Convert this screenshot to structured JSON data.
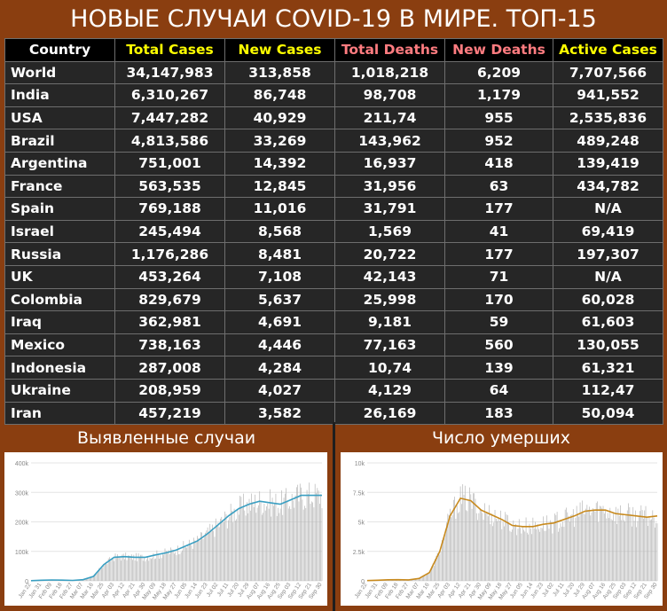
{
  "title": "НОВЫЕ СЛУЧАИ COVID-19 В МИРЕ. ТОП-15",
  "table": {
    "headers": [
      "Country",
      "Total Cases",
      "New Cases",
      "Total Deaths",
      "New Deaths",
      "Active Cases"
    ],
    "header_colors": [
      "#ffffff",
      "#ffff00",
      "#ffff00",
      "#ff7c80",
      "#ff7c80",
      "#ffff00"
    ],
    "rows": [
      [
        "World",
        "34,147,983",
        "313,858",
        "1,018,218",
        "6,209",
        "7,707,566"
      ],
      [
        "India",
        "6,310,267",
        "86,748",
        "98,708",
        "1,179",
        "941,552"
      ],
      [
        "USA",
        "7,447,282",
        "40,929",
        "211,74",
        "955",
        "2,535,836"
      ],
      [
        "Brazil",
        "4,813,586",
        "33,269",
        "143,962",
        "952",
        "489,248"
      ],
      [
        "Argentina",
        "751,001",
        "14,392",
        "16,937",
        "418",
        "139,419"
      ],
      [
        "France",
        "563,535",
        "12,845",
        "31,956",
        "63",
        "434,782"
      ],
      [
        "Spain",
        "769,188",
        "11,016",
        "31,791",
        "177",
        "N/A"
      ],
      [
        "Israel",
        "245,494",
        "8,568",
        "1,569",
        "41",
        "69,419"
      ],
      [
        "Russia",
        "1,176,286",
        "8,481",
        "20,722",
        "177",
        "197,307"
      ],
      [
        "UK",
        "453,264",
        "7,108",
        "42,143",
        "71",
        "N/A"
      ],
      [
        "Colombia",
        "829,679",
        "5,637",
        "25,998",
        "170",
        "60,028"
      ],
      [
        "Iraq",
        "362,981",
        "4,691",
        "9,181",
        "59",
        "61,603"
      ],
      [
        "Mexico",
        "738,163",
        "4,446",
        "77,163",
        "560",
        "130,055"
      ],
      [
        "Indonesia",
        "287,008",
        "4,284",
        "10,74",
        "139",
        "61,321"
      ],
      [
        "Ukraine",
        "208,959",
        "4,027",
        "4,129",
        "64",
        "112,47"
      ],
      [
        "Iran",
        "457,219",
        "3,582",
        "26,169",
        "183",
        "50,094"
      ]
    ]
  },
  "sections": {
    "cases_title": "Выявленные случаи",
    "deaths_title": "Число умерших"
  },
  "chart_data": [
    {
      "type": "bar",
      "title": "Выявленные случаи",
      "xlabel": "",
      "ylabel": "",
      "ylim": [
        0,
        400000
      ],
      "ytick_labels": [
        "0",
        "100k",
        "200k",
        "300k",
        "400k"
      ],
      "ytick_values": [
        0,
        100000,
        200000,
        300000,
        400000
      ],
      "x_tick_labels": [
        "Jan 22",
        "Jan 31",
        "Feb 09",
        "Feb 18",
        "Feb 27",
        "Mar 07",
        "Mar 16",
        "Mar 25",
        "Apr 03",
        "Apr 12",
        "Apr 21",
        "Apr 30",
        "May 09",
        "May 18",
        "May 27",
        "Jun 05",
        "Jun 14",
        "Jun 23",
        "Jul 02",
        "Jul 11",
        "Jul 20",
        "Jul 29",
        "Aug 07",
        "Aug 16",
        "Aug 25",
        "Sep 03",
        "Sep 12",
        "Sep 21",
        "Sep 30"
      ],
      "x_tick_values": [
        "2020-01-22",
        "2020-01-31",
        "2020-02-09",
        "2020-02-18",
        "2020-02-27",
        "2020-03-07",
        "2020-03-16",
        "2020-03-25",
        "2020-04-03",
        "2020-04-12",
        "2020-04-21",
        "2020-04-30",
        "2020-05-09",
        "2020-05-18",
        "2020-05-27",
        "2020-06-05",
        "2020-06-14",
        "2020-06-23",
        "2020-07-02",
        "2020-07-11",
        "2020-07-20",
        "2020-07-29",
        "2020-08-07",
        "2020-08-16",
        "2020-08-25",
        "2020-09-03",
        "2020-09-12",
        "2020-09-21",
        "2020-09-30"
      ],
      "trend": {
        "x": [
          "2020-01-22",
          "2020-01-31",
          "2020-02-09",
          "2020-02-18",
          "2020-02-27",
          "2020-03-07",
          "2020-03-16",
          "2020-03-25",
          "2020-04-03",
          "2020-04-12",
          "2020-04-21",
          "2020-04-30",
          "2020-05-09",
          "2020-05-18",
          "2020-05-27",
          "2020-06-05",
          "2020-06-14",
          "2020-06-23",
          "2020-07-02",
          "2020-07-11",
          "2020-07-20",
          "2020-07-29",
          "2020-08-07",
          "2020-08-16",
          "2020-08-25",
          "2020-09-03",
          "2020-09-12",
          "2020-09-21",
          "2020-09-30"
        ],
        "y": [
          500,
          2000,
          3000,
          2500,
          1500,
          4000,
          15000,
          55000,
          80000,
          82000,
          80000,
          80000,
          88000,
          95000,
          105000,
          120000,
          135000,
          160000,
          190000,
          220000,
          245000,
          260000,
          270000,
          265000,
          260000,
          275000,
          290000,
          290000,
          290000
        ]
      },
      "bar_color": "#b8b8b8",
      "trend_color": "#3a9fc2"
    },
    {
      "type": "bar",
      "title": "Число умерших",
      "xlabel": "",
      "ylabel": "",
      "ylim": [
        0,
        10000
      ],
      "ytick_labels": [
        "0",
        "2.5k",
        "5k",
        "7.5k",
        "10k"
      ],
      "ytick_values": [
        0,
        2500,
        5000,
        7500,
        10000
      ],
      "x_tick_labels": [
        "Jan 22",
        "Jan 31",
        "Feb 09",
        "Feb 18",
        "Feb 27",
        "Mar 07",
        "Mar 16",
        "Mar 25",
        "Apr 03",
        "Apr 12",
        "Apr 21",
        "Apr 30",
        "May 09",
        "May 18",
        "May 27",
        "Jun 05",
        "Jun 14",
        "Jun 23",
        "Jul 02",
        "Jul 11",
        "Jul 20",
        "Jul 29",
        "Aug 07",
        "Aug 16",
        "Aug 25",
        "Sep 03",
        "Sep 12",
        "Sep 21",
        "Sep 30"
      ],
      "x_tick_values": [
        "2020-01-22",
        "2020-01-31",
        "2020-02-09",
        "2020-02-18",
        "2020-02-27",
        "2020-03-07",
        "2020-03-16",
        "2020-03-25",
        "2020-04-03",
        "2020-04-12",
        "2020-04-21",
        "2020-04-30",
        "2020-05-09",
        "2020-05-18",
        "2020-05-27",
        "2020-06-05",
        "2020-06-14",
        "2020-06-23",
        "2020-07-02",
        "2020-07-11",
        "2020-07-20",
        "2020-07-29",
        "2020-08-07",
        "2020-08-16",
        "2020-08-25",
        "2020-09-03",
        "2020-09-12",
        "2020-09-21",
        "2020-09-30"
      ],
      "trend": {
        "x": [
          "2020-01-22",
          "2020-01-31",
          "2020-02-09",
          "2020-02-18",
          "2020-02-27",
          "2020-03-07",
          "2020-03-16",
          "2020-03-25",
          "2020-04-03",
          "2020-04-12",
          "2020-04-21",
          "2020-04-30",
          "2020-05-09",
          "2020-05-18",
          "2020-05-27",
          "2020-06-05",
          "2020-06-14",
          "2020-06-23",
          "2020-07-02",
          "2020-07-11",
          "2020-07-20",
          "2020-07-29",
          "2020-08-07",
          "2020-08-16",
          "2020-08-25",
          "2020-09-03",
          "2020-09-12",
          "2020-09-21",
          "2020-09-30"
        ],
        "y": [
          20,
          50,
          90,
          100,
          80,
          200,
          700,
          2500,
          5500,
          7000,
          6800,
          6000,
          5600,
          5200,
          4700,
          4600,
          4600,
          4800,
          4900,
          5200,
          5500,
          5900,
          6000,
          6000,
          5700,
          5600,
          5500,
          5400,
          5500
        ]
      },
      "bar_color": "#b8b8b8",
      "trend_color": "#c88a1e"
    }
  ]
}
